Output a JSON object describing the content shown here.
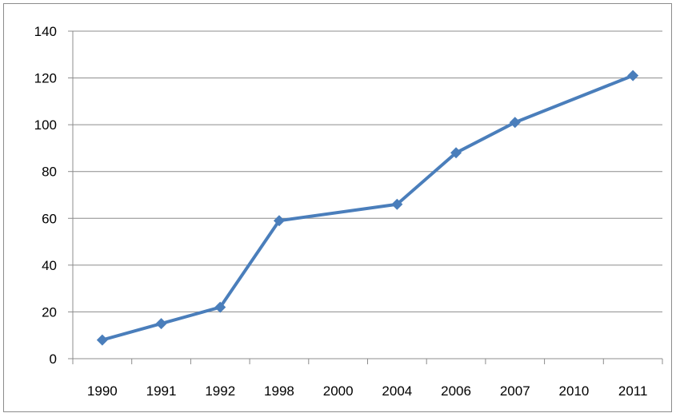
{
  "chart_data": {
    "type": "line",
    "title": "",
    "xlabel": "",
    "ylabel": "",
    "categories": [
      "1990",
      "1991",
      "1992",
      "1998",
      "2000",
      "2004",
      "2006",
      "2007",
      "2010",
      "2011"
    ],
    "x": [
      "1990",
      "1991",
      "1992",
      "1998",
      "2004",
      "2006",
      "2007",
      "2011"
    ],
    "series": [
      {
        "values": [
          8,
          15,
          22,
          59,
          66,
          88,
          101,
          121
        ],
        "color": "#4a7ebb",
        "marker": "diamond"
      }
    ],
    "ylim": [
      0,
      140
    ],
    "yticks": [
      0,
      20,
      40,
      60,
      80,
      100,
      120,
      140
    ],
    "grid": true,
    "legend": "none"
  }
}
